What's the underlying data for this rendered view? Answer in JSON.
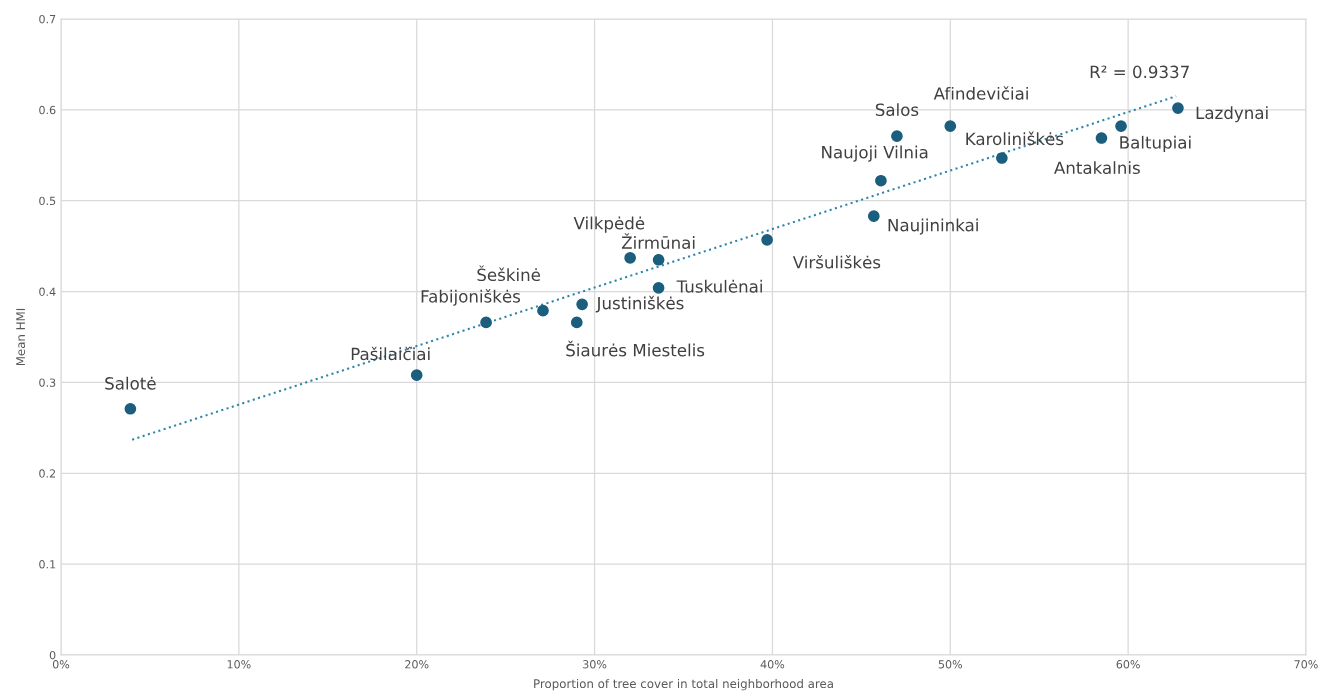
{
  "chart_data": {
    "type": "scatter",
    "xlabel": "Proportion of tree cover in total neighborhood area",
    "ylabel": "Mean HMI",
    "xlim": [
      0,
      70
    ],
    "ylim": [
      0,
      0.7
    ],
    "xticks": [
      {
        "value": 0,
        "label": "0%"
      },
      {
        "value": 10,
        "label": "10%"
      },
      {
        "value": 20,
        "label": "20%"
      },
      {
        "value": 30,
        "label": "30%"
      },
      {
        "value": 40,
        "label": "40%"
      },
      {
        "value": 50,
        "label": "50%"
      },
      {
        "value": 60,
        "label": "60%"
      },
      {
        "value": 70,
        "label": "70%"
      }
    ],
    "yticks": [
      0,
      0.1,
      0.2,
      0.3,
      0.4,
      0.5,
      0.6,
      0.7
    ],
    "grid": true,
    "series": [
      {
        "color": "#1b5e7e",
        "marker": "circle",
        "x": [
          3.9,
          20.0,
          23.9,
          27.1,
          29.0,
          29.3,
          32.0,
          33.6,
          33.6,
          39.7,
          45.7,
          46.1,
          47.0,
          50.0,
          52.9,
          58.5,
          59.6,
          62.8
        ],
        "values": [
          0.271,
          0.308,
          0.366,
          0.379,
          0.366,
          0.386,
          0.437,
          0.435,
          0.404,
          0.457,
          0.483,
          0.522,
          0.571,
          0.582,
          0.547,
          0.569,
          0.582,
          0.602
        ]
      },
      {
        "type": "line",
        "color": "#2e86a8",
        "line_style": "dotted",
        "marker": "none",
        "x": [
          4.0,
          62.7
        ],
        "values": [
          0.237,
          0.615
        ]
      }
    ],
    "annotations": [
      {
        "text": "Salotė",
        "x": 3.9,
        "y": 0.271
      },
      {
        "text": "Pašilaičiai",
        "x": 20.0,
        "y": 0.308
      },
      {
        "text": "Fabijoniškės",
        "x": 23.9,
        "y": 0.366
      },
      {
        "text": "Šeškinė",
        "x": 27.1,
        "y": 0.379
      },
      {
        "text": "Šiaurės Miestelis",
        "x": 29.0,
        "y": 0.366
      },
      {
        "text": "Justiniškės",
        "x": 29.3,
        "y": 0.386
      },
      {
        "text": "Vilkpėdė",
        "x": 32.0,
        "y": 0.437
      },
      {
        "text": "Žirmūnai",
        "x": 33.6,
        "y": 0.435
      },
      {
        "text": "Tuskulėnai",
        "x": 33.6,
        "y": 0.404
      },
      {
        "text": "Viršuliškės",
        "x": 39.7,
        "y": 0.457
      },
      {
        "text": "Naujininkai",
        "x": 45.7,
        "y": 0.483
      },
      {
        "text": "Naujoji Vilnia",
        "x": 46.1,
        "y": 0.522
      },
      {
        "text": "Salos",
        "x": 47.0,
        "y": 0.571
      },
      {
        "text": "Afindevičiai",
        "x": 50.0,
        "y": 0.582
      },
      {
        "text": "Karoliniškės",
        "x": 52.9,
        "y": 0.547
      },
      {
        "text": "Antakalnis",
        "x": 58.5,
        "y": 0.569
      },
      {
        "text": "Baltupiai",
        "x": 59.6,
        "y": 0.582
      },
      {
        "text": "Lazdynai",
        "x": 62.8,
        "y": 0.602
      },
      {
        "text": "R² = 0.9337",
        "x": 62.7,
        "y": 0.615
      }
    ]
  }
}
